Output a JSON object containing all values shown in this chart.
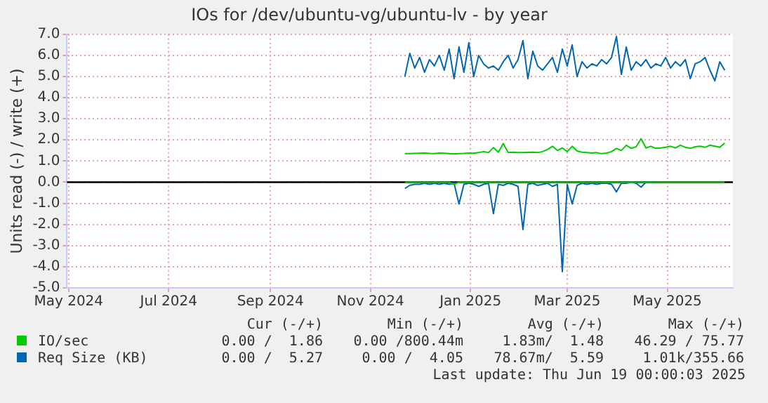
{
  "chart_data": {
    "type": "line",
    "title": "IOs for /dev/ubuntu-vg/ubuntu-lv - by year",
    "ylabel": "Units read (-) / write (+)",
    "x": [
      "2024-11-22",
      "2024-11-25",
      "2024-11-28",
      "2024-12-01",
      "2024-12-04",
      "2024-12-07",
      "2024-12-10",
      "2024-12-13",
      "2024-12-16",
      "2024-12-19",
      "2024-12-22",
      "2024-12-25",
      "2024-12-28",
      "2024-12-31",
      "2025-01-03",
      "2025-01-06",
      "2025-01-09",
      "2025-01-12",
      "2025-01-15",
      "2025-01-18",
      "2025-01-21",
      "2025-01-24",
      "2025-01-27",
      "2025-01-30",
      "2025-02-02",
      "2025-02-05",
      "2025-02-08",
      "2025-02-11",
      "2025-02-14",
      "2025-02-17",
      "2025-02-20",
      "2025-02-23",
      "2025-02-26",
      "2025-03-01",
      "2025-03-04",
      "2025-03-07",
      "2025-03-10",
      "2025-03-13",
      "2025-03-16",
      "2025-03-19",
      "2025-03-22",
      "2025-03-25",
      "2025-03-28",
      "2025-03-31",
      "2025-04-03",
      "2025-04-06",
      "2025-04-09",
      "2025-04-12",
      "2025-04-15",
      "2025-04-18",
      "2025-04-21",
      "2025-04-24",
      "2025-04-27",
      "2025-04-30",
      "2025-05-03",
      "2025-05-06",
      "2025-05-09",
      "2025-05-12",
      "2025-05-15",
      "2025-05-18",
      "2025-05-21",
      "2025-05-24",
      "2025-05-27",
      "2025-05-30",
      "2025-06-02",
      "2025-06-05"
    ],
    "series": [
      {
        "color": "#00cc00",
        "values": [
          0,
          0,
          0,
          0,
          0,
          0,
          0,
          0,
          0,
          0,
          -0.1,
          0,
          0,
          0,
          0,
          0,
          0,
          0,
          0,
          0,
          0,
          0,
          0,
          0,
          0,
          0,
          0,
          0,
          0,
          0,
          0,
          0,
          0,
          0,
          0,
          0,
          0,
          0,
          0,
          0,
          0,
          0,
          0,
          0,
          0,
          0,
          0,
          0,
          0,
          0,
          0,
          0,
          0,
          0,
          0,
          0,
          0,
          0,
          0,
          0,
          0,
          0,
          0,
          0,
          0,
          0
        ]
      },
      {
        "name": "IO/sec",
        "color": "#00cc00",
        "values": [
          1.35,
          1.35,
          1.36,
          1.37,
          1.38,
          1.36,
          1.35,
          1.38,
          1.37,
          1.35,
          1.34,
          1.35,
          1.36,
          1.38,
          1.37,
          1.4,
          1.45,
          1.4,
          1.64,
          1.42,
          1.83,
          1.4,
          1.42,
          1.4,
          1.4,
          1.41,
          1.42,
          1.4,
          1.45,
          1.55,
          1.7,
          1.5,
          1.62,
          1.45,
          1.7,
          1.48,
          1.42,
          1.4,
          1.38,
          1.4,
          1.35,
          1.38,
          1.45,
          1.6,
          1.5,
          1.75,
          1.6,
          1.68,
          2.06,
          1.62,
          1.7,
          1.6,
          1.62,
          1.65,
          1.7,
          1.62,
          1.75,
          1.65,
          1.6,
          1.68,
          1.7,
          1.65,
          1.75,
          1.7,
          1.65,
          1.85
        ]
      },
      {
        "color": "#0066b3",
        "values": [
          -0.3,
          -0.15,
          -0.1,
          -0.1,
          -0.05,
          -0.1,
          -0.05,
          -0.1,
          -0.05,
          -0.1,
          -0.05,
          -1.03,
          -0.1,
          -0.05,
          -0.1,
          -0.2,
          -0.1,
          -0.05,
          -1.49,
          -0.1,
          -0.15,
          -0.05,
          -0.1,
          -0.2,
          -2.24,
          -0.1,
          -0.05,
          -0.15,
          -0.1,
          -0.05,
          -0.2,
          -0.1,
          -4.23,
          -0.1,
          -1.03,
          -0.15,
          -0.05,
          -0.1,
          -0.05,
          -0.1,
          -0.05,
          -0.05,
          -0.1,
          -0.46,
          -0.05,
          -0.05,
          0,
          -0.05,
          -0.23,
          0,
          0,
          0,
          null,
          null,
          null,
          null,
          null,
          null,
          null,
          null,
          null,
          null,
          null,
          null,
          null,
          null
        ]
      },
      {
        "name": "Req Size (KB)",
        "color": "#0066b3",
        "values": [
          5.0,
          6.1,
          5.4,
          5.9,
          5.2,
          5.8,
          5.5,
          6.0,
          5.3,
          6.3,
          4.9,
          6.4,
          5.2,
          6.6,
          5.0,
          6.0,
          5.6,
          5.4,
          5.5,
          5.3,
          5.7,
          6.0,
          5.4,
          5.8,
          6.7,
          4.9,
          6.2,
          5.5,
          5.3,
          5.6,
          5.9,
          5.2,
          6.3,
          5.5,
          6.5,
          5.0,
          5.7,
          5.4,
          5.6,
          5.5,
          5.8,
          5.6,
          5.9,
          6.9,
          5.1,
          6.4,
          5.3,
          5.7,
          5.5,
          5.8,
          5.4,
          5.6,
          5.5,
          5.9,
          5.4,
          5.7,
          5.5,
          5.8,
          4.9,
          5.6,
          5.7,
          5.9,
          5.3,
          4.8,
          5.7,
          5.3
        ]
      }
    ],
    "xlim": [
      "2024-04-30",
      "2025-06-10"
    ],
    "xticks": [
      {
        "value": "2024-05-01",
        "label": "May 2024"
      },
      {
        "value": "2024-07-01",
        "label": "Jul 2024"
      },
      {
        "value": "2024-09-01",
        "label": "Sep 2024"
      },
      {
        "value": "2024-11-01",
        "label": "Nov 2024"
      },
      {
        "value": "2025-01-01",
        "label": "Jan 2025"
      },
      {
        "value": "2025-03-01",
        "label": "Mar 2025"
      },
      {
        "value": "2025-05-01",
        "label": "May 2025"
      }
    ],
    "ylim": [
      -5,
      7
    ],
    "yticks": [
      {
        "value": -5,
        "label": "-5.0"
      },
      {
        "value": -4,
        "label": "-4.0"
      },
      {
        "value": -3,
        "label": "-3.0"
      },
      {
        "value": -2,
        "label": "-2.0"
      },
      {
        "value": -1,
        "label": "-1.0"
      },
      {
        "value": 0,
        "label": "0.0"
      },
      {
        "value": 1,
        "label": "1.0"
      },
      {
        "value": 2,
        "label": "2.0"
      },
      {
        "value": 3,
        "label": "3.0"
      },
      {
        "value": 4,
        "label": "4.0"
      },
      {
        "value": 5,
        "label": "5.0"
      },
      {
        "value": 6,
        "label": "6.0"
      },
      {
        "value": 7,
        "label": "7.0"
      }
    ],
    "ref_lines": [
      {
        "axis": "y",
        "value": 0,
        "color": "#000000"
      }
    ],
    "grid": true,
    "legend": "bottom",
    "marker": "none",
    "line_style": "solid",
    "annotations": [
      "Cur (-/+)",
      "Min (-/+)",
      "Avg (-/+)",
      "Max (-/+)",
      "0.00 /  1.86",
      "0.00 /800.44m",
      "1.83m/  1.48",
      "46.29 / 75.77",
      "0.00 /  5.27",
      "0.00 /  4.05",
      "78.67m/  5.59",
      "1.01k/355.66",
      "Last update: Thu Jun 19 00:00:03 2025"
    ]
  }
}
